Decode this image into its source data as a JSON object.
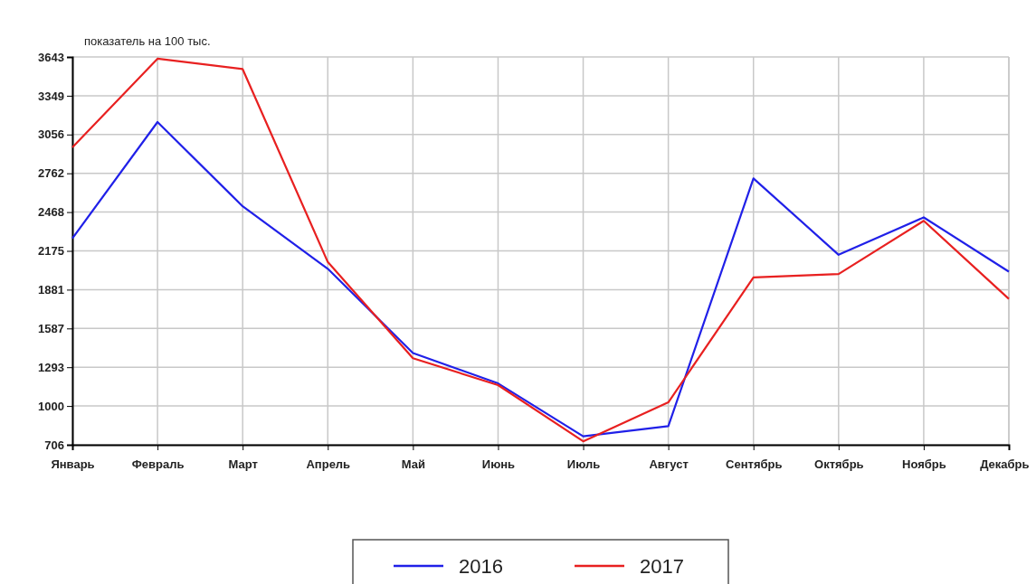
{
  "chart_data": {
    "type": "line",
    "title": "показатель на 100 тыс.",
    "categories": [
      "Январь",
      "Февраль",
      "Март",
      "Апрель",
      "Май",
      "Июнь",
      "Июль",
      "Август",
      "Сентябрь",
      "Октябрь",
      "Ноябрь",
      "Декабрь"
    ],
    "series": [
      {
        "name": "2016",
        "color": "#2020e8",
        "values": [
          2269,
          3150,
          2512,
          2039,
          1401,
          1171,
          770,
          847,
          2723,
          2145,
          2428,
          2017
        ]
      },
      {
        "name": "2017",
        "color": "#e82020",
        "values": [
          2959,
          3630,
          3551,
          2090,
          1362,
          1158,
          732,
          1027,
          1973,
          1999,
          2402,
          1811
        ]
      }
    ],
    "ylim": [
      706,
      3643
    ],
    "yticks": [
      706,
      {
        "value": 999.7,
        "label": "1000"
      },
      {
        "value": 1293.4,
        "label": "1293"
      },
      {
        "value": 1587.1,
        "label": "1587"
      },
      {
        "value": 1880.8,
        "label": "1881"
      },
      {
        "value": 2174.5,
        "label": "2175"
      },
      {
        "value": 2468.2,
        "label": "2468"
      },
      {
        "value": 2761.9,
        "label": "2762"
      },
      {
        "value": 3055.6,
        "label": "3056"
      },
      {
        "value": 3349.3,
        "label": "3349"
      },
      3643
    ],
    "grid": true,
    "legend": "bottom",
    "line_style": "solid"
  }
}
